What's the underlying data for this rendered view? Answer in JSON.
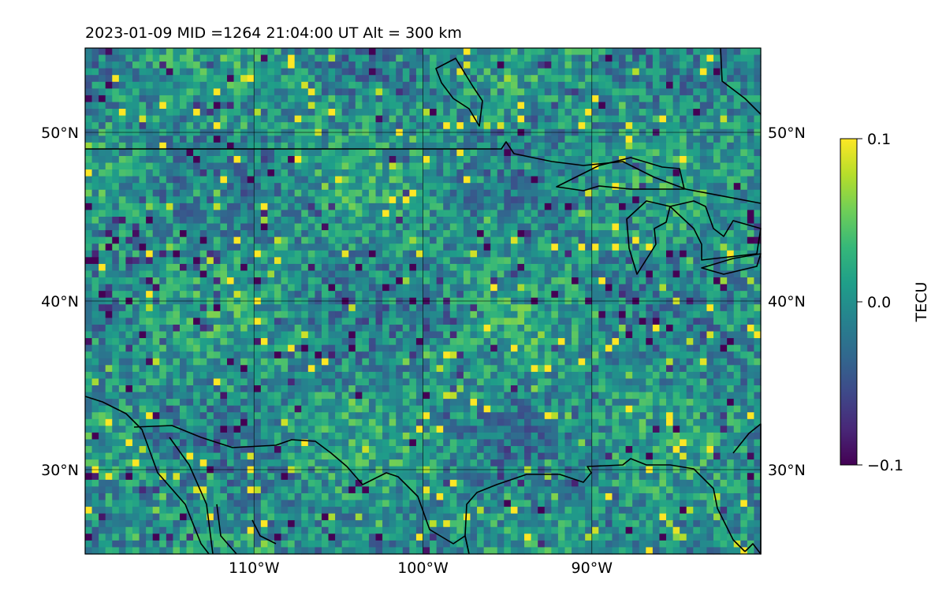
{
  "title": "2023-01-09  MID =1264    21:04:00  UT  Alt = 300 km",
  "map": {
    "lon_range": [
      -120,
      -80
    ],
    "lat_range": [
      25,
      55
    ],
    "lon_ticks": [
      {
        "value": -110,
        "label": "110°W"
      },
      {
        "value": -100,
        "label": "100°W"
      },
      {
        "value": -90,
        "label": "90°W"
      }
    ],
    "lat_ticks": [
      {
        "value": 50,
        "label": "50°N"
      },
      {
        "value": 40,
        "label": "40°N"
      },
      {
        "value": 30,
        "label": "30°N"
      }
    ],
    "gridlines": true,
    "coastlines": true,
    "borders": true,
    "field": "TEC perturbation (noisy, near zero)"
  },
  "colorbar": {
    "label": "TECU",
    "min": -0.1,
    "max": 0.1,
    "ticks": [
      {
        "value": 0.1,
        "label": "0.1"
      },
      {
        "value": 0.0,
        "label": "0.0"
      },
      {
        "value": -0.1,
        "label": "−0.1"
      }
    ],
    "colormap": "viridis"
  },
  "chart_data": {
    "type": "heatmap",
    "title": "2023-01-09  MID =1264    21:04:00  UT  Alt = 300 km",
    "xlim": [
      -120,
      -80
    ],
    "ylim": [
      25,
      55
    ],
    "clim": [
      -0.1,
      0.1
    ],
    "colorbar_label": "TECU",
    "grid": true
  }
}
